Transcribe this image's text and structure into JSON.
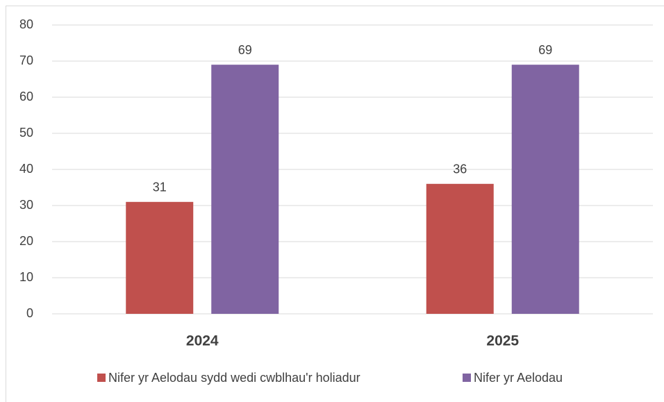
{
  "chart_data": {
    "type": "bar",
    "categories": [
      "2024",
      "2025"
    ],
    "series": [
      {
        "name": "Nifer yr Aelodau sydd wedi cwblhau'r holiadur",
        "color": "#c0504d",
        "values": [
          31,
          36
        ]
      },
      {
        "name": "Nifer yr Aelodau",
        "color": "#8064a2",
        "values": [
          69,
          69
        ]
      }
    ],
    "ylim": [
      0,
      80
    ],
    "yticks": [
      0,
      10,
      20,
      30,
      40,
      50,
      60,
      70,
      80
    ],
    "grid": true,
    "legend": "bottom"
  }
}
